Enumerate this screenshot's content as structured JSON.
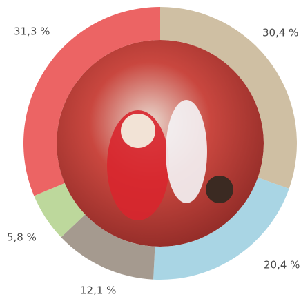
{
  "chart_data": {
    "type": "donut",
    "values": [
      30.4,
      20.4,
      12.1,
      5.8,
      31.3
    ],
    "value_labels": [
      "30,4 %",
      "20,4 %",
      "12,1 %",
      "5,8 %",
      "31,3 %"
    ],
    "colors": [
      "#cfbfa3",
      "#a9d5e4",
      "#a59a8f",
      "#bdd89c",
      "#ec6464"
    ]
  }
}
